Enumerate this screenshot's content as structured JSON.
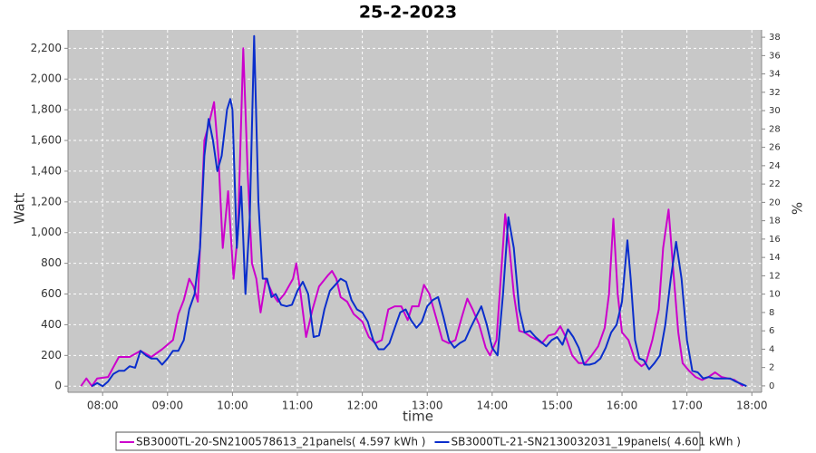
{
  "chart_data": {
    "type": "line",
    "title": "25-2-2023",
    "x_label": "time",
    "y_label": "Watt",
    "y2_label": "%",
    "xlim": [
      "07:28",
      "18:09"
    ],
    "xticks": [
      "08:00",
      "09:00",
      "10:00",
      "11:00",
      "12:00",
      "13:00",
      "14:00",
      "15:00",
      "16:00",
      "17:00",
      "18:00"
    ],
    "ylim": [
      -40,
      2320
    ],
    "yticks": [
      0,
      200,
      400,
      600,
      800,
      {
        "value": 1000,
        "label": "1,000"
      },
      {
        "value": 1200,
        "label": "1,200"
      },
      {
        "value": 1400,
        "label": "1,400"
      },
      {
        "value": 1600,
        "label": "1,600"
      },
      {
        "value": 1800,
        "label": "1,800"
      },
      {
        "value": 2000,
        "label": "2,000"
      },
      {
        "value": 2200,
        "label": "2,200"
      }
    ],
    "y2lim": [
      -0.7,
      38.8
    ],
    "y2ticks": [
      0,
      2,
      4,
      6,
      8,
      10,
      12,
      14,
      16,
      18,
      20,
      22,
      24,
      26,
      28,
      30,
      32,
      34,
      36,
      38
    ],
    "grid": true,
    "legend": "bottom",
    "series": [
      {
        "name": "SB3000TL-20-SN2100578613_21panels( 4.597 kWh )",
        "color": "#cc00cc",
        "x": [
          "07:40",
          "07:45",
          "07:50",
          "07:55",
          "08:05",
          "08:15",
          "08:25",
          "08:35",
          "08:45",
          "08:55",
          "09:05",
          "09:10",
          "09:15",
          "09:20",
          "09:24",
          "09:28",
          "09:34",
          "09:38",
          "09:43",
          "09:47",
          "09:51",
          "09:56",
          "10:01",
          "10:05",
          "10:10",
          "10:14",
          "10:18",
          "10:22",
          "10:26",
          "10:31",
          "10:37",
          "10:42",
          "10:48",
          "10:56",
          "10:59",
          "11:03",
          "11:08",
          "11:14",
          "11:20",
          "11:28",
          "11:32",
          "11:36",
          "11:40",
          "11:46",
          "11:52",
          "12:00",
          "12:06",
          "12:12",
          "12:18",
          "12:24",
          "12:30",
          "12:36",
          "12:42",
          "12:46",
          "12:52",
          "12:57",
          "13:02",
          "13:08",
          "13:14",
          "13:20",
          "13:26",
          "13:32",
          "13:37",
          "13:42",
          "13:48",
          "13:54",
          "13:58",
          "14:04",
          "14:12",
          "14:16",
          "14:20",
          "14:25",
          "14:30",
          "14:36",
          "14:42",
          "14:46",
          "14:52",
          "14:58",
          "15:03",
          "15:08",
          "15:14",
          "15:20",
          "15:26",
          "15:32",
          "15:38",
          "15:44",
          "15:48",
          "15:52",
          "15:56",
          "16:00",
          "16:06",
          "16:12",
          "16:18",
          "16:22",
          "16:28",
          "16:34",
          "16:38",
          "16:43",
          "16:48",
          "16:52",
          "16:56",
          "17:02",
          "17:08",
          "17:14",
          "17:20",
          "17:26",
          "17:32",
          "17:38",
          "17:44",
          "17:52"
        ],
        "values": [
          0,
          50,
          0,
          50,
          60,
          190,
          190,
          230,
          190,
          240,
          300,
          470,
          560,
          700,
          650,
          550,
          1600,
          1700,
          1850,
          1500,
          900,
          1270,
          700,
          1000,
          2200,
          1400,
          800,
          700,
          480,
          700,
          600,
          550,
          600,
          700,
          800,
          600,
          320,
          500,
          650,
          720,
          750,
          700,
          580,
          550,
          470,
          420,
          320,
          280,
          300,
          500,
          520,
          520,
          430,
          520,
          520,
          660,
          600,
          450,
          300,
          280,
          300,
          450,
          570,
          500,
          400,
          250,
          200,
          300,
          1120,
          900,
          600,
          360,
          350,
          320,
          300,
          280,
          330,
          340,
          390,
          320,
          200,
          150,
          150,
          200,
          260,
          380,
          600,
          1090,
          600,
          350,
          300,
          170,
          130,
          150,
          300,
          500,
          900,
          1150,
          700,
          350,
          150,
          100,
          60,
          40,
          60,
          90,
          60,
          50,
          40,
          0
        ]
      },
      {
        "name": "SB3000TL-21-SN2130032031_19panels( 4.601 kWh )",
        "color": "#0a2ecc",
        "x": [
          "07:50",
          "07:55",
          "08:00",
          "08:05",
          "08:10",
          "08:15",
          "08:20",
          "08:25",
          "08:30",
          "08:35",
          "08:40",
          "08:45",
          "08:50",
          "08:55",
          "09:00",
          "09:05",
          "09:10",
          "09:15",
          "09:20",
          "09:25",
          "09:30",
          "09:34",
          "09:38",
          "09:42",
          "09:46",
          "09:50",
          "09:55",
          "09:58",
          "10:00",
          "10:04",
          "10:08",
          "10:12",
          "10:16",
          "10:20",
          "10:24",
          "10:28",
          "10:32",
          "10:36",
          "10:40",
          "10:45",
          "10:50",
          "10:55",
          "11:00",
          "11:05",
          "11:10",
          "11:15",
          "11:20",
          "11:25",
          "11:30",
          "11:35",
          "11:40",
          "11:45",
          "11:50",
          "11:55",
          "12:00",
          "12:05",
          "12:10",
          "12:15",
          "12:20",
          "12:25",
          "12:30",
          "12:35",
          "12:40",
          "12:45",
          "12:50",
          "12:55",
          "13:00",
          "13:05",
          "13:10",
          "13:15",
          "13:20",
          "13:25",
          "13:30",
          "13:35",
          "13:40",
          "13:45",
          "13:50",
          "13:55",
          "14:00",
          "14:05",
          "14:10",
          "14:15",
          "14:20",
          "14:25",
          "14:30",
          "14:35",
          "14:40",
          "14:45",
          "14:50",
          "14:55",
          "15:00",
          "15:05",
          "15:10",
          "15:15",
          "15:20",
          "15:25",
          "15:30",
          "15:35",
          "15:40",
          "15:45",
          "15:50",
          "15:55",
          "16:00",
          "16:05",
          "16:08",
          "16:12",
          "16:16",
          "16:20",
          "16:25",
          "16:30",
          "16:35",
          "16:40",
          "16:45",
          "16:50",
          "16:55",
          "17:00",
          "17:05",
          "17:10",
          "17:15",
          "17:20",
          "17:25",
          "17:30",
          "17:35",
          "17:40",
          "17:45",
          "17:55"
        ],
        "values": [
          0,
          20,
          0,
          30,
          80,
          100,
          100,
          130,
          120,
          230,
          200,
          180,
          180,
          140,
          180,
          230,
          230,
          300,
          500,
          600,
          900,
          1500,
          1740,
          1600,
          1400,
          1500,
          1800,
          1870,
          1800,
          900,
          1300,
          600,
          1100,
          2280,
          1200,
          700,
          700,
          580,
          600,
          530,
          520,
          530,
          620,
          680,
          600,
          320,
          330,
          500,
          620,
          660,
          700,
          680,
          560,
          500,
          480,
          420,
          300,
          240,
          240,
          280,
          380,
          480,
          500,
          430,
          380,
          420,
          520,
          560,
          580,
          450,
          300,
          250,
          280,
          300,
          380,
          450,
          520,
          400,
          250,
          200,
          600,
          1100,
          900,
          500,
          350,
          360,
          320,
          290,
          260,
          300,
          320,
          270,
          370,
          320,
          250,
          140,
          140,
          150,
          180,
          250,
          350,
          400,
          550,
          950,
          700,
          300,
          180,
          170,
          110,
          150,
          200,
          400,
          700,
          940,
          700,
          300,
          100,
          90,
          50,
          60,
          50,
          50,
          50,
          50,
          30,
          0
        ]
      }
    ]
  }
}
